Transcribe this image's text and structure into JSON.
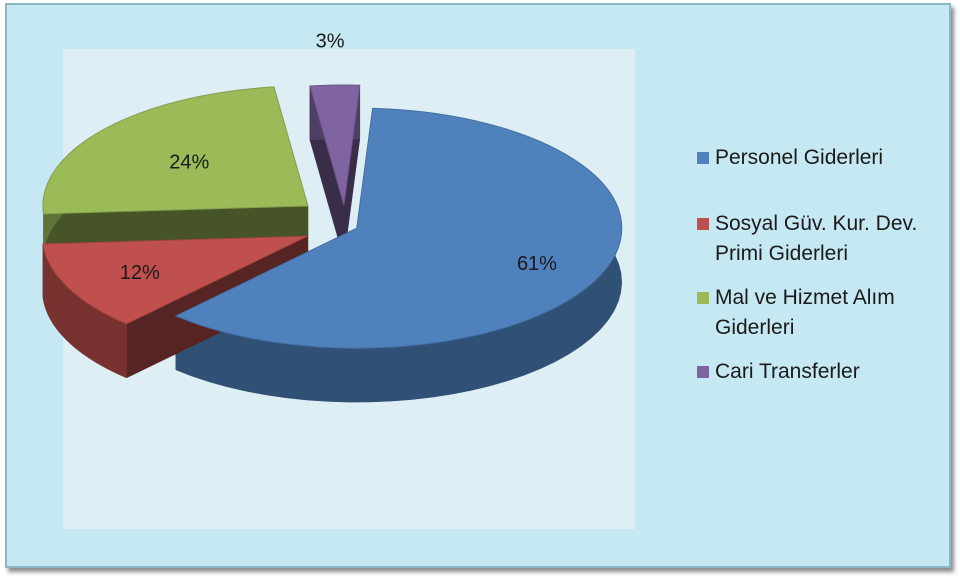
{
  "chart_data": {
    "type": "pie",
    "style": "3d-exploded",
    "categories": [
      "Personel Giderleri",
      "Sosyal Güv. Kur. Dev. Primi Giderleri",
      "Mal ve Hizmet Alım Giderleri",
      "Cari Transferler"
    ],
    "values": [
      61,
      12,
      24,
      3
    ],
    "data_labels": [
      "61%",
      "12%",
      "24%",
      "3%"
    ],
    "colors": [
      "#4f81bd",
      "#c0504d",
      "#9bbb59",
      "#8064a2"
    ],
    "legend_position": "right"
  },
  "legend": {
    "items": [
      {
        "lines": [
          "Personel Giderleri"
        ],
        "color": "#4f81bd"
      },
      {
        "lines": [
          "Sosyal Güv. Kur. Dev.",
          "Primi Giderleri"
        ],
        "color": "#c0504d"
      },
      {
        "lines": [
          "Mal ve Hizmet Alım",
          "Giderleri"
        ],
        "color": "#9bbb59"
      },
      {
        "lines": [
          "Cari Transferler"
        ],
        "color": "#8064a2"
      }
    ]
  },
  "colors": {
    "background": "#c5e8f2",
    "plot_area": "#ddeef4",
    "border": "#8bb6c6"
  }
}
